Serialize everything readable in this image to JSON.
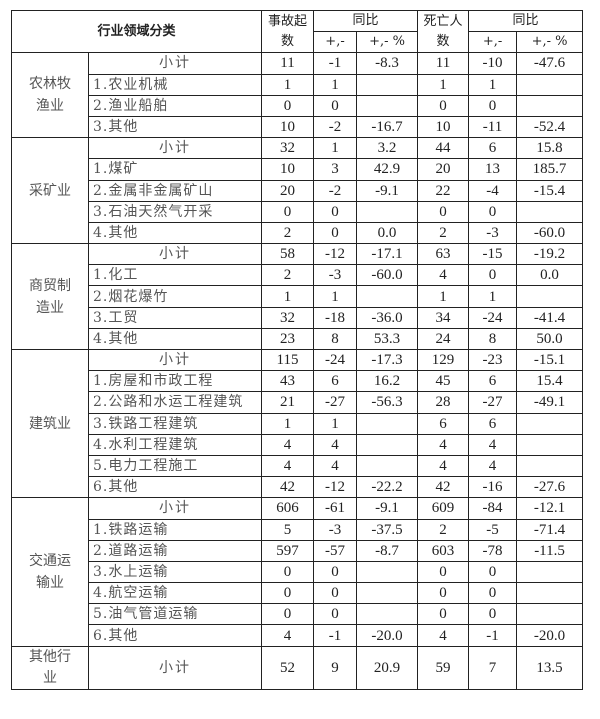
{
  "header": {
    "category": "行业领域分类",
    "accidents": "事故起数",
    "deaths": "死亡人数",
    "yoy": "同比",
    "diff": "+,-",
    "pct": "+,- %"
  },
  "groups": [
    {
      "name": "农林牧渔业",
      "rows": [
        {
          "label": "小计",
          "subtotal": true,
          "acc": "11",
          "acc_d": "-1",
          "acc_p": "-8.3",
          "death": "11",
          "death_d": "-10",
          "death_p": "-47.6"
        },
        {
          "label": "1.农业机械",
          "acc": "1",
          "acc_d": "1",
          "acc_p": "",
          "death": "1",
          "death_d": "1",
          "death_p": ""
        },
        {
          "label": "2.渔业船舶",
          "acc": "0",
          "acc_d": "0",
          "acc_p": "",
          "death": "0",
          "death_d": "0",
          "death_p": ""
        },
        {
          "label": "3.其他",
          "acc": "10",
          "acc_d": "-2",
          "acc_p": "-16.7",
          "death": "10",
          "death_d": "-11",
          "death_p": "-52.4"
        }
      ]
    },
    {
      "name": "采矿业",
      "rows": [
        {
          "label": "小计",
          "subtotal": true,
          "acc": "32",
          "acc_d": "1",
          "acc_p": "3.2",
          "death": "44",
          "death_d": "6",
          "death_p": "15.8"
        },
        {
          "label": "1.煤矿",
          "acc": "10",
          "acc_d": "3",
          "acc_p": "42.9",
          "death": "20",
          "death_d": "13",
          "death_p": "185.7"
        },
        {
          "label": "2.金属非金属矿山",
          "acc": "20",
          "acc_d": "-2",
          "acc_p": "-9.1",
          "death": "22",
          "death_d": "-4",
          "death_p": "-15.4"
        },
        {
          "label": "3.石油天然气开采",
          "acc": "0",
          "acc_d": "0",
          "acc_p": "",
          "death": "0",
          "death_d": "0",
          "death_p": ""
        },
        {
          "label": "4.其他",
          "acc": "2",
          "acc_d": "0",
          "acc_p": "0.0",
          "death": "2",
          "death_d": "-3",
          "death_p": "-60.0"
        }
      ]
    },
    {
      "name": "商贸制造业",
      "rows": [
        {
          "label": "小计",
          "subtotal": true,
          "acc": "58",
          "acc_d": "-12",
          "acc_p": "-17.1",
          "death": "63",
          "death_d": "-15",
          "death_p": "-19.2"
        },
        {
          "label": "1.化工",
          "acc": "2",
          "acc_d": "-3",
          "acc_p": "-60.0",
          "death": "4",
          "death_d": "0",
          "death_p": "0.0"
        },
        {
          "label": "2.烟花爆竹",
          "acc": "1",
          "acc_d": "1",
          "acc_p": "",
          "death": "1",
          "death_d": "1",
          "death_p": ""
        },
        {
          "label": "3.工贸",
          "acc": "32",
          "acc_d": "-18",
          "acc_p": "-36.0",
          "death": "34",
          "death_d": "-24",
          "death_p": "-41.4"
        },
        {
          "label": "4.其他",
          "acc": "23",
          "acc_d": "8",
          "acc_p": "53.3",
          "death": "24",
          "death_d": "8",
          "death_p": "50.0"
        }
      ]
    },
    {
      "name": "建筑业",
      "rows": [
        {
          "label": "小计",
          "subtotal": true,
          "acc": "115",
          "acc_d": "-24",
          "acc_p": "-17.3",
          "death": "129",
          "death_d": "-23",
          "death_p": "-15.1"
        },
        {
          "label": "1.房屋和市政工程",
          "acc": "43",
          "acc_d": "6",
          "acc_p": "16.2",
          "death": "45",
          "death_d": "6",
          "death_p": "15.4"
        },
        {
          "label": "2.公路和水运工程建筑",
          "acc": "21",
          "acc_d": "-27",
          "acc_p": "-56.3",
          "death": "28",
          "death_d": "-27",
          "death_p": "-49.1"
        },
        {
          "label": "3.铁路工程建筑",
          "acc": "1",
          "acc_d": "1",
          "acc_p": "",
          "death": "6",
          "death_d": "6",
          "death_p": ""
        },
        {
          "label": "4.水利工程建筑",
          "acc": "4",
          "acc_d": "4",
          "acc_p": "",
          "death": "4",
          "death_d": "4",
          "death_p": ""
        },
        {
          "label": "5.电力工程施工",
          "acc": "4",
          "acc_d": "4",
          "acc_p": "",
          "death": "4",
          "death_d": "4",
          "death_p": ""
        },
        {
          "label": "6.其他",
          "acc": "42",
          "acc_d": "-12",
          "acc_p": "-22.2",
          "death": "42",
          "death_d": "-16",
          "death_p": "-27.6"
        }
      ]
    },
    {
      "name": "交通运输业",
      "rows": [
        {
          "label": "小计",
          "subtotal": true,
          "acc": "606",
          "acc_d": "-61",
          "acc_p": "-9.1",
          "death": "609",
          "death_d": "-84",
          "death_p": "-12.1"
        },
        {
          "label": "1.铁路运输",
          "acc": "5",
          "acc_d": "-3",
          "acc_p": "-37.5",
          "death": "2",
          "death_d": "-5",
          "death_p": "-71.4"
        },
        {
          "label": "2.道路运输",
          "acc": "597",
          "acc_d": "-57",
          "acc_p": "-8.7",
          "death": "603",
          "death_d": "-78",
          "death_p": "-11.5"
        },
        {
          "label": "3.水上运输",
          "acc": "0",
          "acc_d": "0",
          "acc_p": "",
          "death": "0",
          "death_d": "0",
          "death_p": ""
        },
        {
          "label": "4.航空运输",
          "acc": "0",
          "acc_d": "0",
          "acc_p": "",
          "death": "0",
          "death_d": "0",
          "death_p": ""
        },
        {
          "label": "5.油气管道运输",
          "acc": "0",
          "acc_d": "0",
          "acc_p": "",
          "death": "0",
          "death_d": "0",
          "death_p": ""
        },
        {
          "label": "6.其他",
          "acc": "4",
          "acc_d": "-1",
          "acc_p": "-20.0",
          "death": "4",
          "death_d": "-1",
          "death_p": "-20.0"
        }
      ]
    },
    {
      "name": "其他行业",
      "tall": true,
      "rows": [
        {
          "label": "小计",
          "subtotal": true,
          "acc": "52",
          "acc_d": "9",
          "acc_p": "20.9",
          "death": "59",
          "death_d": "7",
          "death_p": "13.5"
        }
      ]
    }
  ]
}
